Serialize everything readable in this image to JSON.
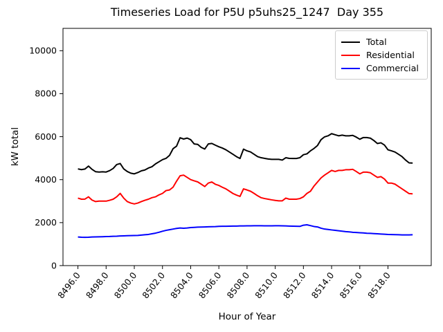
{
  "figure": {
    "title": "Timeseries Load for P5U p5uhs25_1247  Day 355",
    "xlabel": "Hour of Year",
    "ylabel": "kW total"
  },
  "legend": {
    "items": [
      {
        "label": "Total",
        "color": "#000000"
      },
      {
        "label": "Residential",
        "color": "#ff0000"
      },
      {
        "label": "Commercial",
        "color": "#0000ff"
      }
    ]
  },
  "chart_data": {
    "type": "line",
    "title": "Timeseries Load for P5U p5uhs25_1247  Day 355",
    "xlabel": "Hour of Year",
    "ylabel": "kW total",
    "xlim": [
      8494.94,
      8521.07
    ],
    "ylim": [
      0,
      11040
    ],
    "grid": false,
    "legend_position": "upper right",
    "x_ticks": [
      8496,
      8498,
      8500,
      8502,
      8504,
      8506,
      8508,
      8510,
      8512,
      8514,
      8516,
      8518
    ],
    "x_tick_labels": [
      "8496.0",
      "8498.0",
      "8500.0",
      "8502.0",
      "8504.0",
      "8506.0",
      "8508.0",
      "8510.0",
      "8512.0",
      "8514.0",
      "8516.0",
      "8518.0"
    ],
    "y_ticks": [
      0,
      2000,
      4000,
      6000,
      8000,
      10000
    ],
    "y_tick_labels": [
      "0",
      "2000",
      "4000",
      "6000",
      "8000",
      "10000"
    ],
    "x_start": 8496.0,
    "x_step": 0.25,
    "series": [
      {
        "name": "Total",
        "color": "#000000",
        "values": [
          4500,
          4465,
          4495,
          4630,
          4480,
          4370,
          4355,
          4365,
          4355,
          4420,
          4520,
          4700,
          4750,
          4500,
          4380,
          4300,
          4270,
          4330,
          4410,
          4450,
          4540,
          4600,
          4730,
          4830,
          4930,
          4990,
          5130,
          5440,
          5560,
          5950,
          5890,
          5935,
          5860,
          5660,
          5640,
          5500,
          5425,
          5660,
          5685,
          5605,
          5530,
          5470,
          5390,
          5285,
          5180,
          5070,
          4985,
          5420,
          5340,
          5290,
          5180,
          5070,
          5020,
          4990,
          4960,
          4945,
          4945,
          4945,
          4910,
          5020,
          4990,
          4985,
          4985,
          5020,
          5160,
          5200,
          5340,
          5450,
          5590,
          5860,
          5990,
          6040,
          6140,
          6090,
          6040,
          6070,
          6040,
          6040,
          6060,
          5980,
          5880,
          5960,
          5960,
          5930,
          5820,
          5680,
          5715,
          5610,
          5390,
          5340,
          5285,
          5180,
          5070,
          4910,
          4780,
          4770
        ]
      },
      {
        "name": "Residential",
        "color": "#ff0000",
        "values": [
          3140,
          3090,
          3095,
          3200,
          3050,
          2980,
          3000,
          3000,
          3000,
          3040,
          3090,
          3200,
          3360,
          3140,
          2980,
          2910,
          2870,
          2910,
          2980,
          3040,
          3090,
          3160,
          3200,
          3290,
          3360,
          3490,
          3520,
          3650,
          3930,
          4180,
          4210,
          4105,
          4000,
          3945,
          3895,
          3790,
          3680,
          3840,
          3890,
          3785,
          3730,
          3645,
          3570,
          3465,
          3355,
          3280,
          3220,
          3570,
          3520,
          3460,
          3360,
          3250,
          3160,
          3120,
          3090,
          3060,
          3035,
          3015,
          3015,
          3140,
          3090,
          3090,
          3090,
          3120,
          3200,
          3360,
          3460,
          3700,
          3890,
          4080,
          4210,
          4320,
          4430,
          4380,
          4430,
          4430,
          4460,
          4460,
          4480,
          4380,
          4270,
          4350,
          4350,
          4320,
          4210,
          4105,
          4140,
          4030,
          3840,
          3840,
          3790,
          3680,
          3570,
          3460,
          3350,
          3340
        ]
      },
      {
        "name": "Commercial",
        "color": "#0000ff",
        "values": [
          1330,
          1320,
          1315,
          1320,
          1330,
          1335,
          1340,
          1345,
          1350,
          1355,
          1365,
          1370,
          1380,
          1385,
          1390,
          1395,
          1400,
          1405,
          1420,
          1435,
          1450,
          1480,
          1510,
          1550,
          1600,
          1640,
          1670,
          1700,
          1730,
          1750,
          1740,
          1750,
          1770,
          1780,
          1790,
          1795,
          1800,
          1805,
          1810,
          1815,
          1825,
          1830,
          1830,
          1835,
          1840,
          1840,
          1845,
          1845,
          1850,
          1850,
          1855,
          1855,
          1855,
          1850,
          1850,
          1850,
          1855,
          1855,
          1850,
          1845,
          1840,
          1835,
          1830,
          1825,
          1880,
          1900,
          1860,
          1820,
          1800,
          1740,
          1700,
          1680,
          1660,
          1640,
          1620,
          1600,
          1580,
          1570,
          1550,
          1540,
          1530,
          1520,
          1505,
          1500,
          1490,
          1480,
          1470,
          1460,
          1450,
          1445,
          1440,
          1435,
          1430,
          1430,
          1430,
          1435
        ]
      }
    ]
  }
}
